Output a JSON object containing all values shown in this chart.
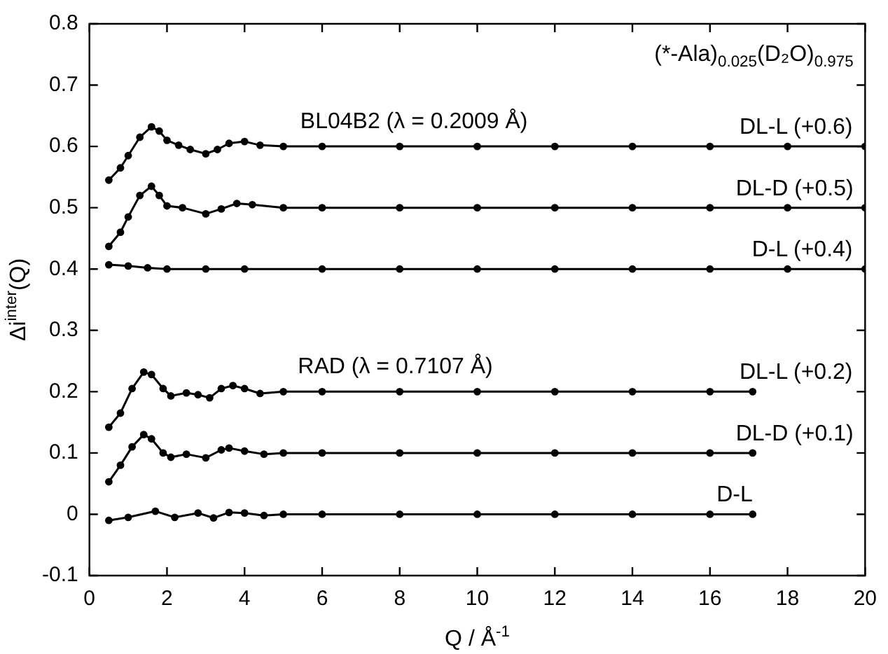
{
  "chart_data": {
    "type": "line",
    "xlabel": "Q / Å$^{-1}$",
    "ylabel": "Δi$^{inter}$(Q)",
    "annotations": [
      "(*-Ala)$_{0.025}$(D₂O)$_{0.975}$",
      "BL04B2 (λ = 0.2009 Å)",
      "RAD (λ = 0.7107 Å)"
    ],
    "xlim": [
      0,
      20
    ],
    "xticks": [
      0,
      2,
      4,
      6,
      8,
      10,
      12,
      14,
      16,
      18,
      20
    ],
    "ylim": [
      -0.1,
      0.8
    ],
    "yticks": [
      -0.1,
      0,
      0.1,
      0.2,
      0.3,
      0.4,
      0.5,
      0.6,
      0.7,
      0.8
    ],
    "grid": false,
    "legend": false,
    "marker": "circle",
    "line_style": "solid",
    "series": [
      {
        "name": "DL-L (+0.6)",
        "color": "#000000",
        "x": [
          0.5,
          0.8,
          1.0,
          1.3,
          1.6,
          1.8,
          2.0,
          2.3,
          2.6,
          3.0,
          3.3,
          3.6,
          4.0,
          4.4,
          5,
          6,
          8,
          10,
          12,
          14,
          16,
          18,
          20
        ],
        "values": [
          0.545,
          0.565,
          0.585,
          0.615,
          0.632,
          0.625,
          0.61,
          0.602,
          0.595,
          0.588,
          0.595,
          0.605,
          0.608,
          0.602,
          0.6,
          0.6,
          0.6,
          0.6,
          0.6,
          0.6,
          0.6,
          0.6,
          0.6
        ]
      },
      {
        "name": "DL-D (+0.5)",
        "color": "#000000",
        "x": [
          0.5,
          0.8,
          1.0,
          1.3,
          1.6,
          1.8,
          2.0,
          2.4,
          3.0,
          3.4,
          3.8,
          4.2,
          5,
          6,
          8,
          10,
          12,
          14,
          16,
          18,
          20
        ],
        "values": [
          0.437,
          0.46,
          0.485,
          0.52,
          0.535,
          0.52,
          0.503,
          0.5,
          0.49,
          0.498,
          0.507,
          0.505,
          0.5,
          0.5,
          0.5,
          0.5,
          0.5,
          0.5,
          0.5,
          0.5,
          0.5
        ]
      },
      {
        "name": "D-L (+0.4)",
        "color": "#000000",
        "x": [
          0.5,
          1.0,
          1.5,
          2.0,
          3.0,
          4,
          6,
          8,
          10,
          12,
          14,
          16,
          18,
          20
        ],
        "values": [
          0.407,
          0.405,
          0.402,
          0.4,
          0.4,
          0.4,
          0.4,
          0.4,
          0.4,
          0.4,
          0.4,
          0.4,
          0.4,
          0.4
        ]
      },
      {
        "name": "DL-L (+0.2)",
        "color": "#000000",
        "x": [
          0.5,
          0.8,
          1.1,
          1.4,
          1.6,
          1.9,
          2.1,
          2.5,
          2.8,
          3.1,
          3.4,
          3.7,
          4.0,
          4.4,
          5,
          6,
          8,
          10,
          12,
          14,
          16,
          17.1
        ],
        "values": [
          0.142,
          0.165,
          0.205,
          0.232,
          0.228,
          0.205,
          0.193,
          0.198,
          0.195,
          0.19,
          0.205,
          0.21,
          0.205,
          0.197,
          0.2,
          0.2,
          0.2,
          0.2,
          0.2,
          0.2,
          0.2,
          0.2
        ]
      },
      {
        "name": "DL-D (+0.1)",
        "color": "#000000",
        "x": [
          0.5,
          0.8,
          1.1,
          1.4,
          1.6,
          1.9,
          2.1,
          2.5,
          3.0,
          3.4,
          3.6,
          4.0,
          4.5,
          5,
          6,
          8,
          10,
          12,
          14,
          16,
          17.1
        ],
        "values": [
          0.053,
          0.08,
          0.11,
          0.13,
          0.123,
          0.1,
          0.093,
          0.098,
          0.092,
          0.105,
          0.108,
          0.103,
          0.098,
          0.1,
          0.1,
          0.1,
          0.1,
          0.1,
          0.1,
          0.1,
          0.1
        ]
      },
      {
        "name": "D-L",
        "color": "#000000",
        "x": [
          0.5,
          1.0,
          1.7,
          2.2,
          2.8,
          3.2,
          3.6,
          4,
          4.5,
          5,
          6,
          8,
          10,
          12,
          14,
          16,
          17.1
        ],
        "values": [
          -0.01,
          -0.005,
          0.005,
          -0.005,
          0.002,
          -0.006,
          0.003,
          0.002,
          -0.002,
          0,
          0,
          0,
          0,
          0,
          0,
          0,
          0
        ]
      }
    ]
  }
}
